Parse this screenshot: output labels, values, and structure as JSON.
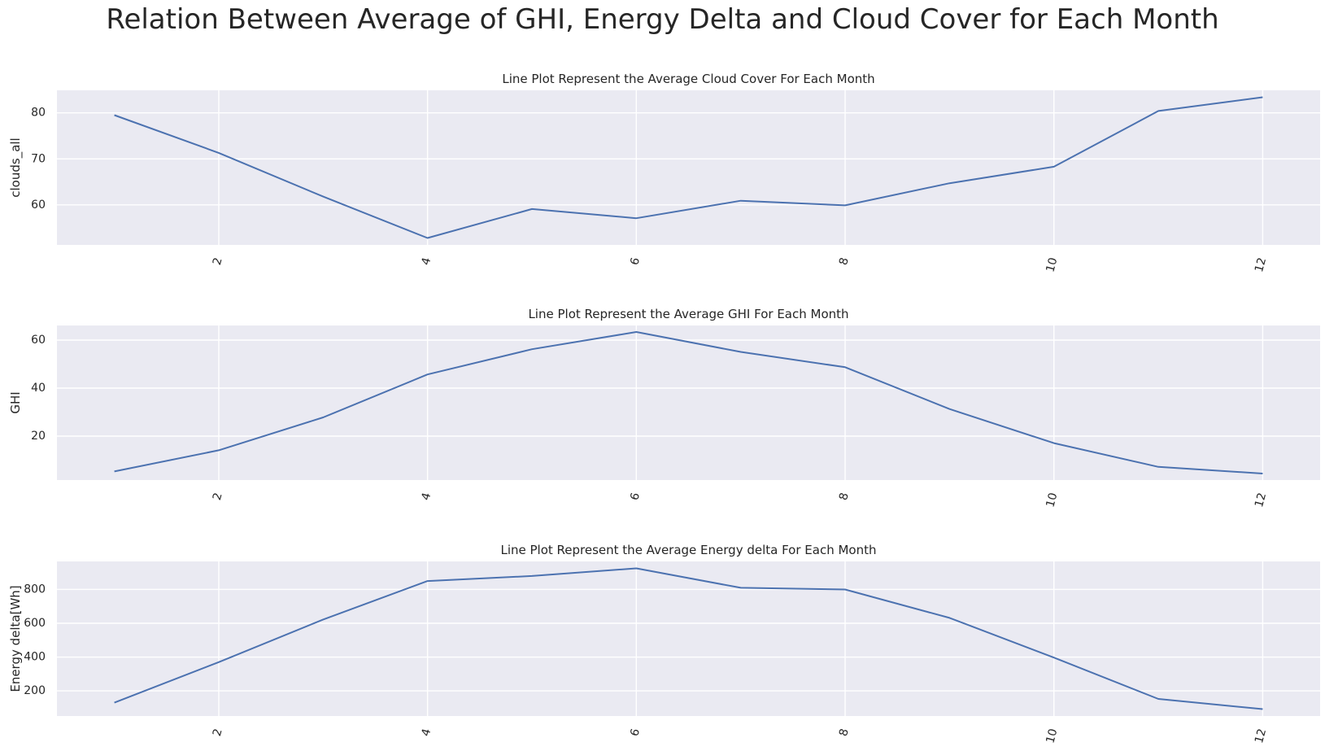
{
  "title": "Relation Between Average of GHI, Energy Delta and Cloud Cover for Each Month",
  "colors": {
    "line": "#4c72b0",
    "panel_background": "#eaeaf2",
    "grid": "#ffffff",
    "text": "#262626"
  },
  "chart_data": [
    {
      "type": "line",
      "title": "Line Plot Represent the Average Cloud Cover For Each Month",
      "xlabel": "",
      "ylabel": "clouds_all",
      "x": [
        1,
        2,
        3,
        4,
        5,
        6,
        7,
        8,
        9,
        10,
        11,
        12
      ],
      "series": [
        {
          "values": [
            79.5,
            71.3,
            61.8,
            52.8,
            59.1,
            57.1,
            60.9,
            59.9,
            64.7,
            68.3,
            80.4,
            83.4
          ]
        }
      ],
      "xticks": [
        2,
        4,
        6,
        8,
        10,
        12
      ],
      "xtick_rotation": 75,
      "yticks": [
        60,
        70,
        80
      ],
      "xlim": [
        0.45,
        12.55
      ],
      "ylim": [
        51.3,
        84.9
      ],
      "grid": true
    },
    {
      "type": "line",
      "title": "Line Plot Represent the Average GHI For Each Month",
      "xlabel": "",
      "ylabel": "GHI",
      "x": [
        1,
        2,
        3,
        4,
        5,
        6,
        7,
        8,
        9,
        10,
        11,
        12
      ],
      "series": [
        {
          "values": [
            5.3,
            14.1,
            27.8,
            45.7,
            56.2,
            63.4,
            55.1,
            48.7,
            31.3,
            17.1,
            7.2,
            4.4
          ]
        }
      ],
      "xticks": [
        2,
        4,
        6,
        8,
        10,
        12
      ],
      "xtick_rotation": 75,
      "yticks": [
        20,
        40,
        60
      ],
      "xlim": [
        0.45,
        12.55
      ],
      "ylim": [
        1.7,
        66.1
      ],
      "grid": true
    },
    {
      "type": "line",
      "title": "Line Plot Represent the Average Energy delta For Each Month",
      "xlabel": "",
      "ylabel": "Energy delta[Wh]",
      "x": [
        1,
        2,
        3,
        4,
        5,
        6,
        7,
        8,
        9,
        10,
        11,
        12
      ],
      "series": [
        {
          "values": [
            130,
            370,
            622,
            850,
            880,
            925,
            810,
            800,
            632,
            397,
            152,
            92
          ]
        }
      ],
      "xticks": [
        2,
        4,
        6,
        8,
        10,
        12
      ],
      "xtick_rotation": 75,
      "yticks": [
        200,
        400,
        600,
        800
      ],
      "xlim": [
        0.45,
        12.55
      ],
      "ylim": [
        51,
        966
      ],
      "grid": true
    }
  ]
}
